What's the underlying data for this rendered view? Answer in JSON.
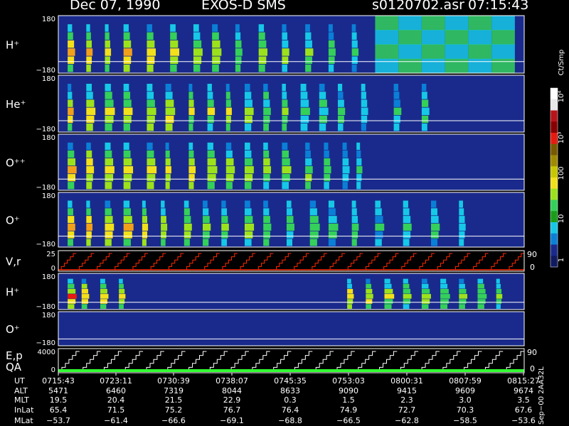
{
  "header": {
    "date": "Dec 07, 1990",
    "instrument": "EXOS-D SMS",
    "file": "s0120702.asr",
    "time": "07:15:43"
  },
  "colors": {
    "background": "#000000",
    "spectrogram_bg": "#1a2a8c",
    "trace_red": "#ff2a00",
    "trace_white": "#ffffff",
    "trace_green": "#33ff33"
  },
  "chart_data": {
    "type": "heatmap",
    "colorbar": {
      "unit_label": "Ct/Smp",
      "tick_labels": [
        "10⁴",
        "10³",
        "100",
        "10",
        "1"
      ],
      "scale": "log",
      "range": [
        1,
        10000
      ]
    },
    "panels": [
      {
        "label": "H⁺",
        "ytick_top": "180",
        "ytick_bottom": "−180",
        "kind": "spectrogram",
        "bursts": [
          0.02,
          0.06,
          0.1,
          0.14,
          0.19,
          0.24,
          0.29,
          0.33,
          0.38,
          0.43,
          0.48,
          0.53,
          0.58,
          0.63
        ],
        "bg_blocks": [
          0.68,
          0.73,
          0.78,
          0.83,
          0.88,
          0.93
        ]
      },
      {
        "label": "He⁺",
        "ytick_top": "180",
        "ytick_bottom": "−180",
        "kind": "spectrogram",
        "bursts": [
          0.02,
          0.06,
          0.1,
          0.14,
          0.19,
          0.23,
          0.28,
          0.32,
          0.36,
          0.4,
          0.44,
          0.48,
          0.52,
          0.56,
          0.6,
          0.65,
          0.72,
          0.78
        ]
      },
      {
        "label": "O⁺⁺",
        "ytick_top": "180",
        "ytick_bottom": "−180",
        "kind": "spectrogram",
        "bursts": [
          0.02,
          0.06,
          0.1,
          0.14,
          0.19,
          0.23,
          0.28,
          0.32,
          0.36,
          0.4,
          0.44,
          0.48,
          0.53,
          0.57,
          0.61,
          0.64
        ]
      },
      {
        "label": "O⁺",
        "ytick_top": "180",
        "ytick_bottom": "−180",
        "kind": "spectrogram",
        "bursts": [
          0.02,
          0.06,
          0.1,
          0.14,
          0.18,
          0.22,
          0.27,
          0.31,
          0.35,
          0.4,
          0.44,
          0.49,
          0.54,
          0.58,
          0.63,
          0.68,
          0.74,
          0.8,
          0.86
        ]
      },
      {
        "label": "V,r",
        "ytick_top": "25",
        "ytick_bottom": "0",
        "right_top": "90",
        "right_bottom": "0",
        "kind": "staircase_red"
      },
      {
        "label": "H⁺",
        "ytick_top": "180",
        "ytick_bottom": "−180",
        "kind": "spectrogram",
        "bursts": [
          0.02,
          0.05,
          0.09,
          0.13,
          0.62,
          0.66,
          0.7,
          0.74,
          0.78,
          0.82,
          0.86,
          0.9,
          0.94
        ]
      },
      {
        "label": "O⁺",
        "ytick_top": "180",
        "ytick_bottom": "−180",
        "kind": "spectrogram_empty"
      },
      {
        "label": "E,p\nQA",
        "ytick_top": "4000",
        "ytick_bottom": "0",
        "right_top": "90",
        "right_bottom": "0",
        "kind": "staircase_white"
      }
    ],
    "x_axis": {
      "row_labels": [
        "UT",
        "ALT",
        "MLT",
        "InLat",
        "MLat"
      ],
      "columns": [
        {
          "UT": "0715:43",
          "ALT": "5471",
          "MLT": "19.5",
          "InLat": "65.4",
          "MLat": "−53.7"
        },
        {
          "UT": "0723:11",
          "ALT": "6460",
          "MLT": "20.4",
          "InLat": "71.5",
          "MLat": "−61.4"
        },
        {
          "UT": "0730:39",
          "ALT": "7319",
          "MLT": "21.5",
          "InLat": "75.2",
          "MLat": "−66.6"
        },
        {
          "UT": "0738:07",
          "ALT": "8044",
          "MLT": "22.9",
          "InLat": "76.7",
          "MLat": "−69.1"
        },
        {
          "UT": "0745:35",
          "ALT": "8633",
          "MLT": "0.3",
          "InLat": "76.4",
          "MLat": "−68.8"
        },
        {
          "UT": "0753:03",
          "ALT": "9090",
          "MLT": "1.5",
          "InLat": "74.9",
          "MLat": "−66.5"
        },
        {
          "UT": "0800:31",
          "ALT": "9415",
          "MLT": "2.3",
          "InLat": "72.7",
          "MLat": "−62.8"
        },
        {
          "UT": "0807:59",
          "ALT": "9609",
          "MLT": "3.0",
          "InLat": "70.3",
          "MLat": "−58.5"
        },
        {
          "UT": "0815:27",
          "ALT": "9674",
          "MLT": "3.5",
          "InLat": "67.6",
          "MLat": "−53.6"
        }
      ]
    },
    "footer_vertical": "Sep−00  2AA32L"
  }
}
